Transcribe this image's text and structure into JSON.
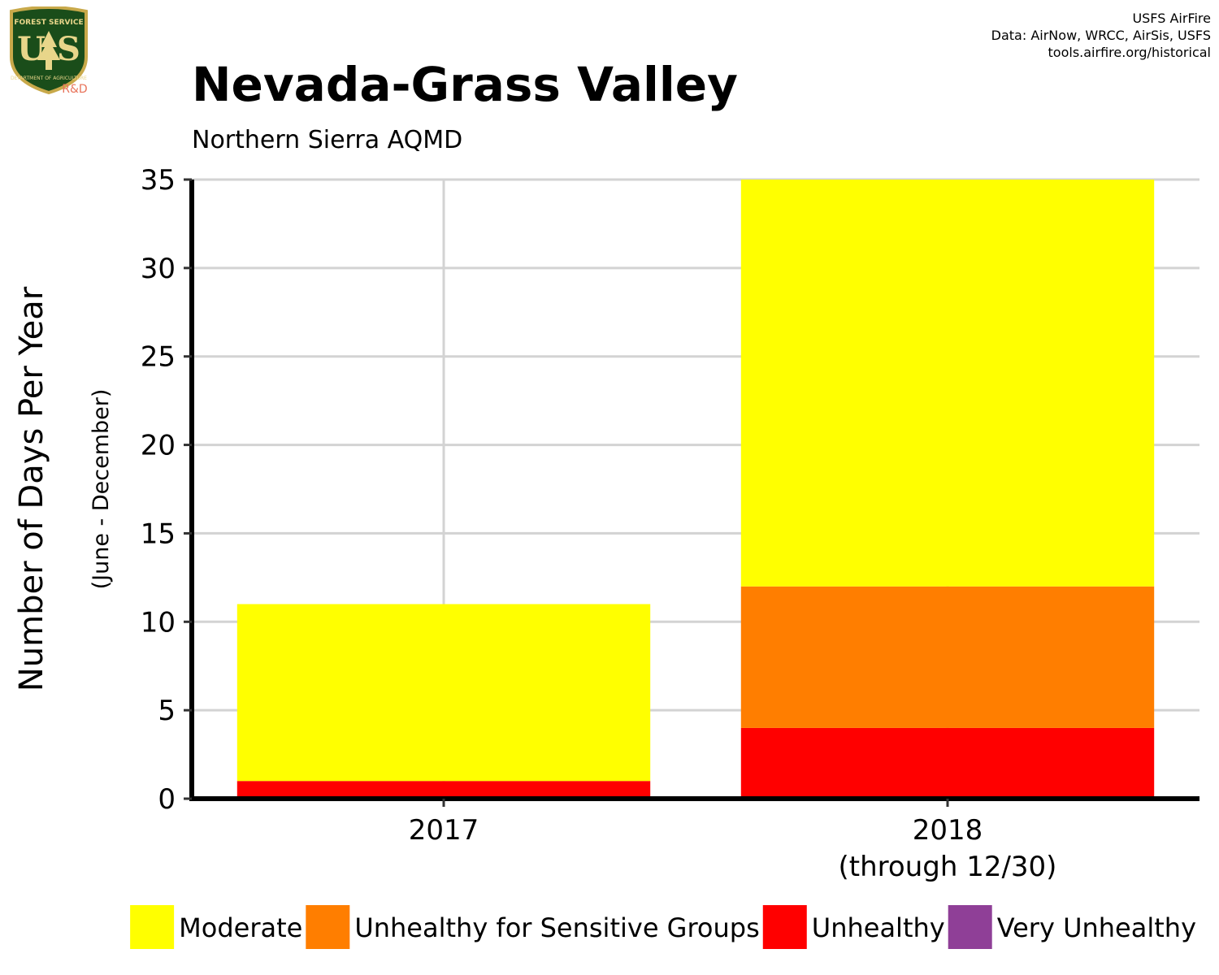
{
  "header": {
    "credits": [
      "USFS AirFire",
      "Data: AirNow, WRCC, AirSis, USFS",
      "tools.airfire.org/historical"
    ],
    "logo": {
      "top_text": "FOREST SERVICE",
      "main_text": "U S",
      "bottom_text": "DEPARTMENT OF AGRICULTURE",
      "rd_label": "R&D"
    }
  },
  "chart_data": {
    "type": "bar",
    "stacked": true,
    "title": "Nevada-Grass Valley",
    "subtitle": "Northern Sierra AQMD",
    "ylabel": "Number of Days Per Year",
    "ylabel_sub": "(June - December)",
    "xlabel": "",
    "ylim": [
      0,
      35
    ],
    "yticks": [
      0,
      5,
      10,
      15,
      20,
      25,
      30,
      35
    ],
    "categories": [
      {
        "label": "2017",
        "sublabel": ""
      },
      {
        "label": "2018",
        "sublabel": "(through 12/30)"
      }
    ],
    "series": [
      {
        "name": "Unhealthy",
        "color": "#ff0000",
        "values": [
          1,
          4
        ]
      },
      {
        "name": "Unhealthy for Sensitive Groups",
        "color": "#ff7e00",
        "values": [
          0,
          8
        ]
      },
      {
        "name": "Moderate",
        "color": "#ffff00",
        "values": [
          10,
          23
        ]
      },
      {
        "name": "Very Unhealthy",
        "color": "#8f3f97",
        "values": [
          0,
          0
        ]
      }
    ],
    "legend": {
      "placement": "bottom",
      "order": [
        "Moderate",
        "Unhealthy for Sensitive Groups",
        "Unhealthy",
        "Very Unhealthy"
      ]
    },
    "grid": true
  }
}
